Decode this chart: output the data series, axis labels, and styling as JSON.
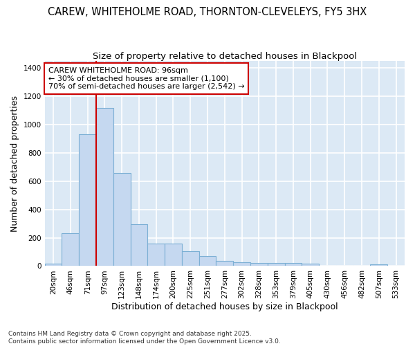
{
  "title_line1": "CAREW, WHITEHOLME ROAD, THORNTON-CLEVELEYS, FY5 3HX",
  "title_line2": "Size of property relative to detached houses in Blackpool",
  "xlabel": "Distribution of detached houses by size in Blackpool",
  "ylabel": "Number of detached properties",
  "categories": [
    "20sqm",
    "46sqm",
    "71sqm",
    "97sqm",
    "123sqm",
    "148sqm",
    "174sqm",
    "200sqm",
    "225sqm",
    "251sqm",
    "277sqm",
    "302sqm",
    "328sqm",
    "353sqm",
    "379sqm",
    "405sqm",
    "430sqm",
    "456sqm",
    "482sqm",
    "507sqm",
    "533sqm"
  ],
  "values": [
    15,
    230,
    930,
    1115,
    660,
    295,
    160,
    160,
    105,
    70,
    35,
    25,
    20,
    20,
    20,
    15,
    0,
    0,
    0,
    10,
    0
  ],
  "bar_color": "#c5d8f0",
  "bar_edge_color": "#7bafd4",
  "vline_color": "#cc0000",
  "annotation_text": "CAREW WHITEHOLME ROAD: 96sqm\n← 30% of detached houses are smaller (1,100)\n70% of semi-detached houses are larger (2,542) →",
  "annotation_box_color": "#ffffff",
  "annotation_box_edge": "#cc0000",
  "ylim": [
    0,
    1450
  ],
  "yticks": [
    0,
    200,
    400,
    600,
    800,
    1000,
    1200,
    1400
  ],
  "plot_bg_color": "#dce9f5",
  "fig_bg_color": "#ffffff",
  "grid_color": "#ffffff",
  "footer_text": "Contains HM Land Registry data © Crown copyright and database right 2025.\nContains public sector information licensed under the Open Government Licence v3.0.",
  "title_fontsize": 10.5,
  "subtitle_fontsize": 9.5,
  "axis_label_fontsize": 9,
  "tick_fontsize": 7.5,
  "annotation_fontsize": 8,
  "footer_fontsize": 6.5
}
